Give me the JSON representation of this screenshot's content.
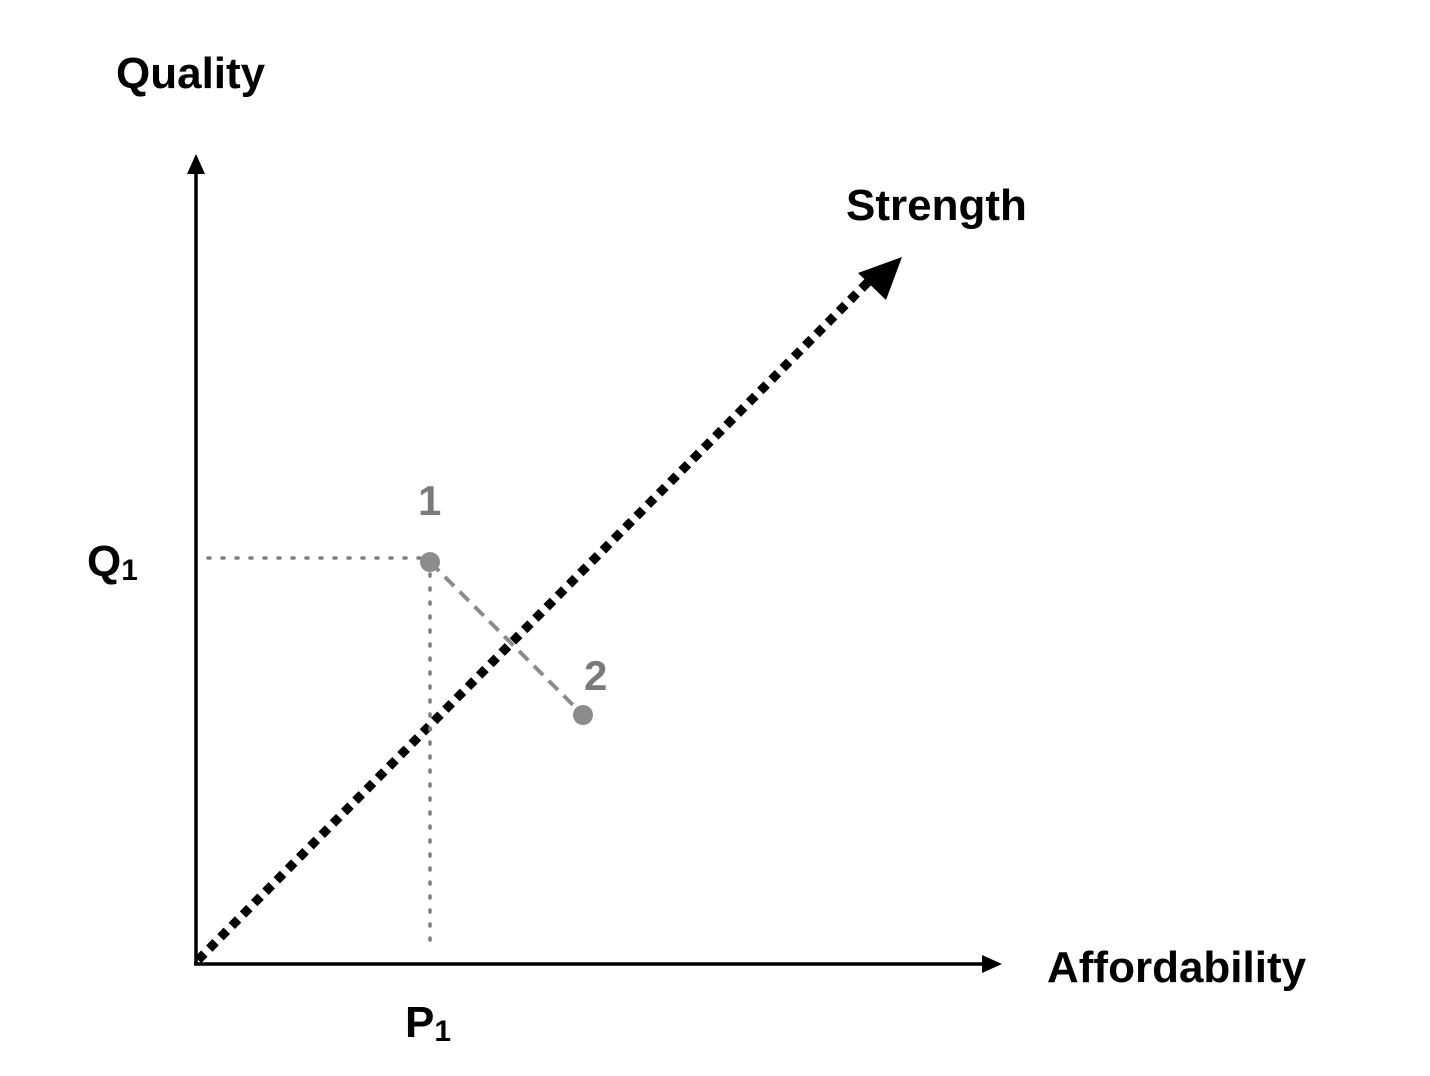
{
  "y_axis_label": "Quality",
  "x_axis_label": "Affordability",
  "diagonal_label": "Strength",
  "q_marker": {
    "letter": "Q",
    "subscript": "1"
  },
  "p_marker": {
    "letter": "P",
    "subscript": "1"
  },
  "points": [
    {
      "label": "1"
    },
    {
      "label": "2"
    }
  ],
  "colors": {
    "axis": "#000000",
    "guide": "#7f7f7f",
    "point": "#8c8c8c",
    "point_label": "#7a7a7a"
  }
}
